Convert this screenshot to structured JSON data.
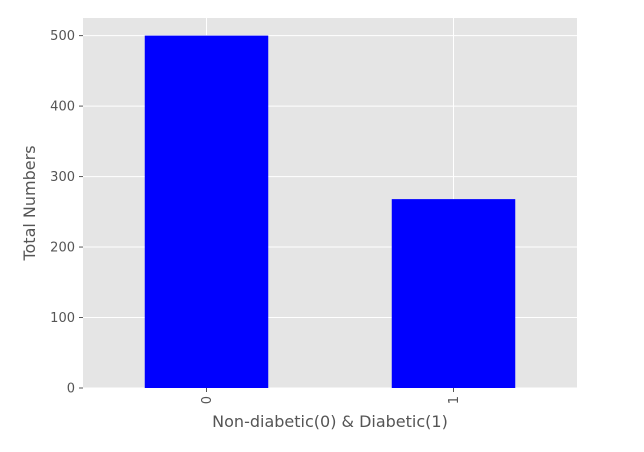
{
  "chart_data": {
    "type": "bar",
    "categories": [
      "0",
      "1"
    ],
    "values": [
      500,
      268
    ],
    "title": "",
    "xlabel": "Non-diabetic(0) & Diabetic(1)",
    "ylabel": "Total Numbers",
    "ylim": [
      0,
      525
    ],
    "yticks": [
      0,
      100,
      200,
      300,
      400,
      500
    ],
    "grid": true,
    "x_tick_rotation": 90,
    "bar_color": "#0000ff",
    "plot_background": "#e5e5e5",
    "grid_color": "#ffffff"
  }
}
